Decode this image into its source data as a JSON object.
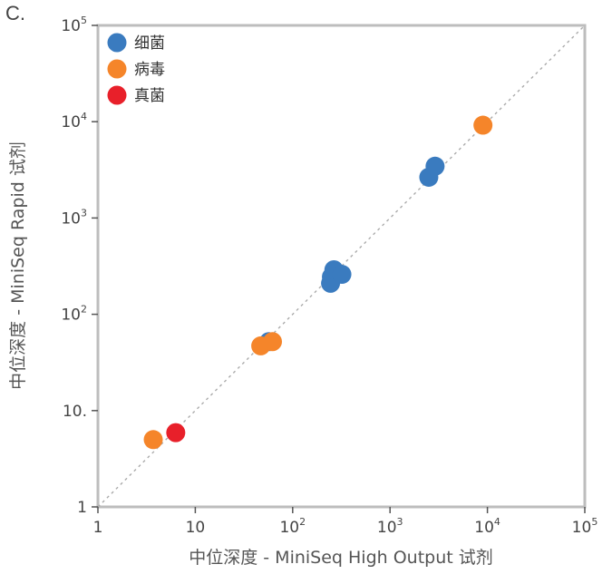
{
  "panel_label": "C.",
  "chart_data": {
    "type": "scatter",
    "title": "",
    "xlabel": "中位深度 - MiniSeq High Output 试剂",
    "ylabel": "中位深度 - MiniSeq Rapid 试剂",
    "xscale": "log",
    "yscale": "log",
    "xlim": [
      1,
      100000
    ],
    "ylim": [
      1,
      100000
    ],
    "x_ticks": [
      {
        "value": 1,
        "base": "1",
        "exp": ""
      },
      {
        "value": 10,
        "base": "10",
        "exp": ""
      },
      {
        "value": 100,
        "base": "10",
        "exp": "2"
      },
      {
        "value": 1000,
        "base": "10",
        "exp": "3"
      },
      {
        "value": 10000,
        "base": "10",
        "exp": "4"
      },
      {
        "value": 100000,
        "base": "10",
        "exp": "5"
      }
    ],
    "y_ticks": [
      {
        "value": 1,
        "base": "1",
        "exp": ""
      },
      {
        "value": 10,
        "base": "10.",
        "exp": ""
      },
      {
        "value": 100,
        "base": "10",
        "exp": "2"
      },
      {
        "value": 1000,
        "base": "10",
        "exp": "3"
      },
      {
        "value": 10000,
        "base": "10",
        "exp": "4"
      },
      {
        "value": 100000,
        "base": "10",
        "exp": "5"
      }
    ],
    "reference_line": "y = x",
    "grid": false,
    "legend_position": "top-left",
    "series": [
      {
        "name": "细菌",
        "color": "#3a7bbf",
        "points": [
          [
            57,
            52
          ],
          [
            245,
            210
          ],
          [
            250,
            245
          ],
          [
            265,
            290
          ],
          [
            320,
            260
          ],
          [
            2500,
            2650
          ],
          [
            2900,
            3450
          ]
        ]
      },
      {
        "name": "病毒",
        "color": "#f5852a",
        "points": [
          [
            3.7,
            5.0
          ],
          [
            47,
            47
          ],
          [
            62,
            52
          ],
          [
            9000,
            9200
          ]
        ]
      },
      {
        "name": "真菌",
        "color": "#e8202a",
        "points": [
          [
            6.3,
            5.9
          ]
        ]
      }
    ]
  }
}
